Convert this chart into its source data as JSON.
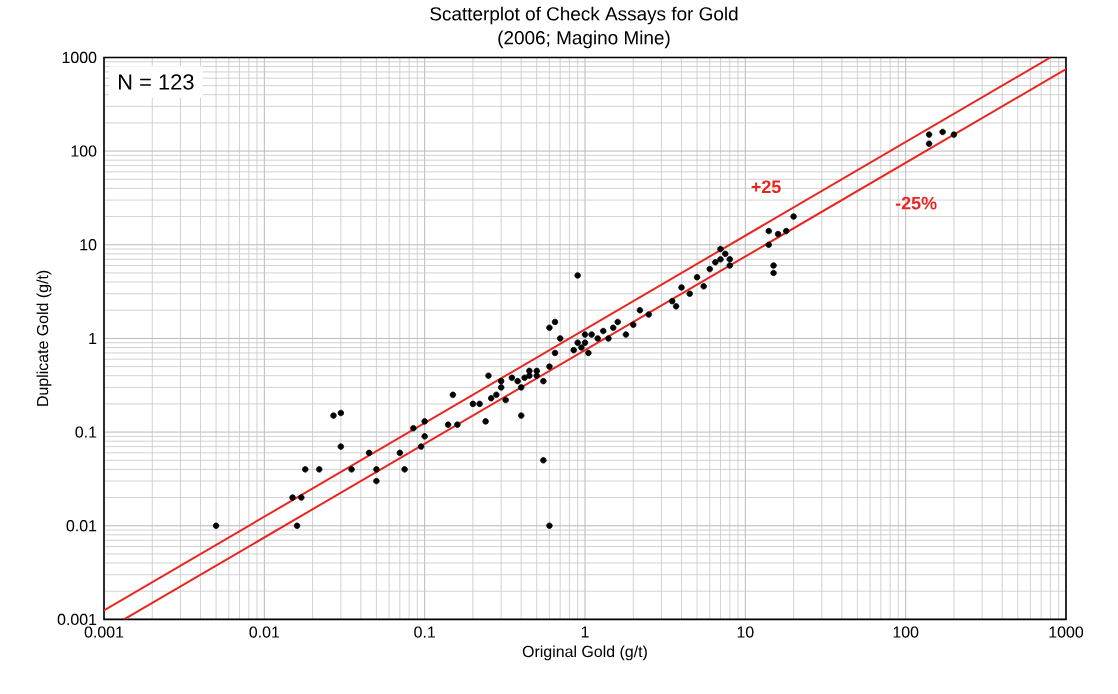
{
  "chart_data": {
    "type": "scatter",
    "title": "Scatterplot of Check Assays for Gold",
    "subtitle": "(2006; Magino Mine)",
    "xlabel": "Original Gold (g/t)",
    "ylabel": "Duplicate Gold (g/t)",
    "log": "xy",
    "grid": true,
    "xlim": [
      0.001,
      1000
    ],
    "ylim": [
      0.001,
      1000
    ],
    "xticks": [
      0.001,
      0.01,
      0.1,
      1,
      10,
      100,
      1000
    ],
    "yticks": [
      0.001,
      0.01,
      0.1,
      1,
      10,
      100,
      1000
    ],
    "annotations": [
      "N = 123"
    ],
    "series": [
      {
        "color": "#000000",
        "marker": "circle",
        "x": [
          0.005,
          0.015,
          0.016,
          0.017,
          0.018,
          0.022,
          0.027,
          0.03,
          0.03,
          0.035,
          0.045,
          0.05,
          0.05,
          0.07,
          0.075,
          0.085,
          0.095,
          0.1,
          0.1,
          0.14,
          0.15,
          0.16,
          0.2,
          0.22,
          0.24,
          0.25,
          0.26,
          0.28,
          0.3,
          0.3,
          0.32,
          0.35,
          0.38,
          0.4,
          0.4,
          0.42,
          0.45,
          0.45,
          0.5,
          0.5,
          0.55,
          0.55,
          0.6,
          0.6,
          0.6,
          0.65,
          0.65,
          0.7,
          0.85,
          0.9,
          0.9,
          0.95,
          1.0,
          1.0,
          1.05,
          1.1,
          1.2,
          1.3,
          1.4,
          1.5,
          1.6,
          1.8,
          2.0,
          2.2,
          2.5,
          3.5,
          3.7,
          4.0,
          4.5,
          5.0,
          5.5,
          6.0,
          6.5,
          7,
          7,
          7.5,
          8,
          8,
          14,
          14,
          15,
          15,
          16,
          18,
          20,
          140,
          140,
          170,
          200
        ],
        "values": [
          0.01,
          0.02,
          0.01,
          0.02,
          0.04,
          0.04,
          0.15,
          0.16,
          0.07,
          0.04,
          0.06,
          0.04,
          0.03,
          0.06,
          0.04,
          0.11,
          0.07,
          0.13,
          0.09,
          0.12,
          0.25,
          0.12,
          0.2,
          0.2,
          0.13,
          0.4,
          0.23,
          0.25,
          0.3,
          0.35,
          0.22,
          0.38,
          0.35,
          0.3,
          0.15,
          0.38,
          0.4,
          0.45,
          0.4,
          0.45,
          0.35,
          0.05,
          0.01,
          0.5,
          1.3,
          0.7,
          1.5,
          1.0,
          0.75,
          4.7,
          0.9,
          0.8,
          0.9,
          1.1,
          0.7,
          1.1,
          1.0,
          1.2,
          1.0,
          1.3,
          1.5,
          1.1,
          1.4,
          2.0,
          1.8,
          2.5,
          2.2,
          3.5,
          3.0,
          4.5,
          3.6,
          5.5,
          6.5,
          9,
          7,
          8,
          7,
          6,
          14,
          10,
          6,
          5,
          13,
          14,
          20,
          150,
          120,
          160,
          150
        ]
      },
      {
        "type": "line",
        "name": "+25",
        "color": "#e8261f",
        "x": [
          0.001,
          800
        ],
        "values": [
          0.00125,
          1000
        ]
      },
      {
        "type": "line",
        "name": "-25%",
        "color": "#e8261f",
        "x": [
          0.0013333,
          1000
        ],
        "values": [
          0.001,
          750
        ]
      }
    ]
  }
}
